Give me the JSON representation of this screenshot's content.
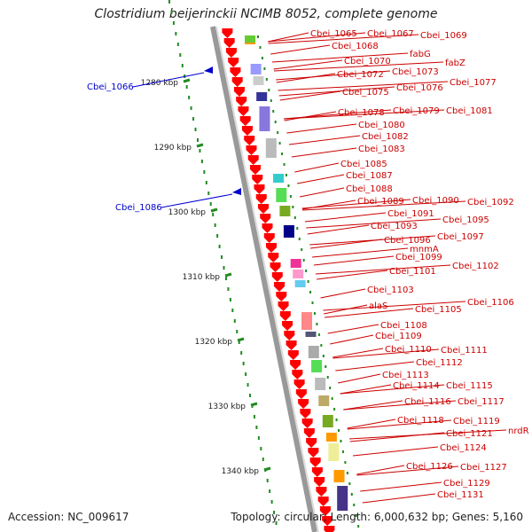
{
  "title": "Clostridium beijerinckii NCIMB 8052, complete genome",
  "footer": {
    "accession": "Accession: NC_009617",
    "summary": "Topology: circular; Length: 6,000,632 bp; Genes: 5,160"
  },
  "colors": {
    "forward_label": "#cc0000",
    "reverse_label": "#0000cc",
    "gene_arrow": "#ff0000",
    "tick": "#228b22",
    "backbone": "#999999"
  },
  "kbp_ticks": [
    "1280 kbp",
    "1290 kbp",
    "1300 kbp",
    "1310 kbp",
    "1320 kbp",
    "1330 kbp",
    "1340 kbp"
  ],
  "reverse_labels": [
    "Cbei_1066",
    "Cbei_1086"
  ],
  "forward_labels": [
    "Cbei_1065",
    "Cbei_1067",
    "Cbei_1069",
    "Cbei_1068",
    "Cbei_1070",
    "fabG",
    "fabZ",
    "Cbei_1072",
    "Cbei_1073",
    "Cbei_1077",
    "Cbei_1075",
    "Cbei_1076",
    "Cbei_1078",
    "Cbei_1079",
    "Cbei_1081",
    "Cbei_1080",
    "Cbei_1082",
    "Cbei_1083",
    "Cbei_1085",
    "Cbei_1087",
    "Cbei_1088",
    "Cbei_1089",
    "Cbei_1090",
    "Cbei_1092",
    "Cbei_1091",
    "Cbei_1093",
    "Cbei_1095",
    "Cbei_1096",
    "Cbei_1097",
    "mnmA",
    "Cbei_1099",
    "Cbei_1102",
    "Cbei_1101",
    "Cbei_1103",
    "alaS",
    "Cbei_1106",
    "Cbei_1105",
    "Cbei_1108",
    "Cbei_1109",
    "Cbei_1110",
    "Cbei_1111",
    "Cbei_1112",
    "Cbei_1113",
    "Cbei_1114",
    "Cbei_1115",
    "Cbei_1116",
    "Cbei_1117",
    "Cbei_1118",
    "Cbei_1119",
    "nrdR",
    "Cbei_1121",
    "Cbei_1124",
    "Cbei_1126",
    "Cbei_1127",
    "Cbei_1129",
    "Cbei_1131"
  ]
}
